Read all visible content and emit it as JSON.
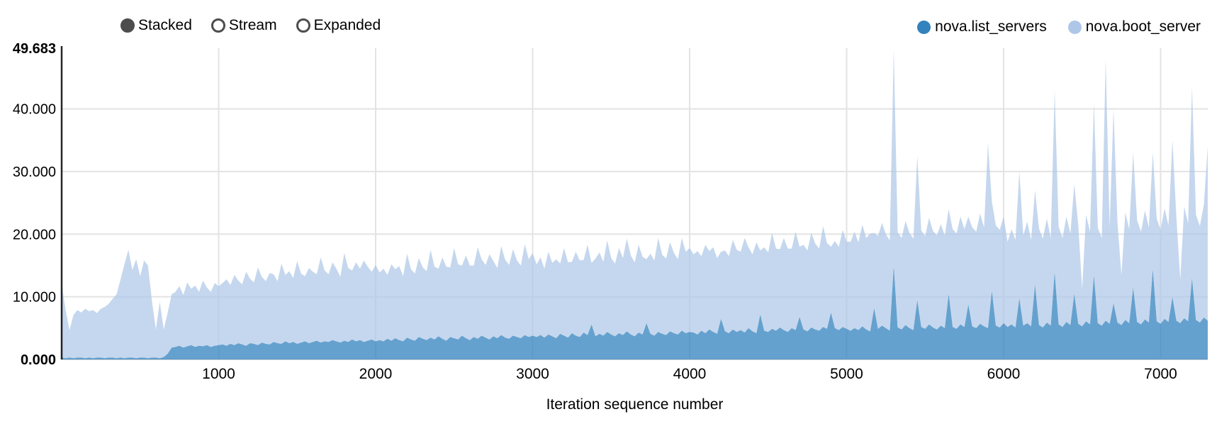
{
  "controls": {
    "items": [
      {
        "label": "Stacked",
        "selected": true
      },
      {
        "label": "Stream",
        "selected": false
      },
      {
        "label": "Expanded",
        "selected": false
      }
    ],
    "radio_color": "#4d4d4d"
  },
  "legend": {
    "position": "top-right",
    "items": [
      {
        "label": "nova.list_servers",
        "color": "#3182bd"
      },
      {
        "label": "nova.boot_server",
        "color": "#aec7e8"
      }
    ]
  },
  "chart_data": {
    "type": "area",
    "stacked": true,
    "title": "",
    "xlabel": "Iteration sequence number",
    "ylabel": "",
    "xlim": [
      0,
      7300
    ],
    "ylim": [
      0,
      49.683
    ],
    "grid": true,
    "grid_color": "#e3e3e3",
    "axis_line_color": "#000000",
    "x_start": 0,
    "x_step": 25,
    "x_ticks": [
      {
        "value": 1000,
        "label": "1000"
      },
      {
        "value": 2000,
        "label": "2000"
      },
      {
        "value": 3000,
        "label": "3000"
      },
      {
        "value": 4000,
        "label": "4000"
      },
      {
        "value": 5000,
        "label": "5000"
      },
      {
        "value": 6000,
        "label": "6000"
      },
      {
        "value": 7000,
        "label": "7000"
      }
    ],
    "y_ticks": [
      {
        "value": 0,
        "label": "0.000",
        "bold": true
      },
      {
        "value": 10,
        "label": "10.000",
        "bold": false
      },
      {
        "value": 20,
        "label": "20.000",
        "bold": false
      },
      {
        "value": 30,
        "label": "30.000",
        "bold": false
      },
      {
        "value": 40,
        "label": "40.000",
        "bold": false
      },
      {
        "value": 49.683,
        "label": "49.683",
        "bold": true
      }
    ],
    "series": [
      {
        "name": "nova.list_servers",
        "color": "#3182bd",
        "fill_opacity": 0.75,
        "values": [
          0.3,
          0.2,
          0.3,
          0.2,
          0.3,
          0.3,
          0.2,
          0.3,
          0.2,
          0.3,
          0.3,
          0.2,
          0.3,
          0.3,
          0.2,
          0.3,
          0.2,
          0.3,
          0.3,
          0.2,
          0.3,
          0.3,
          0.2,
          0.3,
          0.3,
          0.2,
          0.4,
          0.9,
          1.9,
          2.0,
          2.2,
          1.9,
          2.1,
          2.3,
          2.0,
          2.2,
          2.1,
          2.3,
          2.0,
          2.2,
          2.3,
          2.4,
          2.2,
          2.5,
          2.3,
          2.6,
          2.4,
          2.2,
          2.6,
          2.5,
          2.3,
          2.7,
          2.5,
          2.4,
          2.8,
          2.6,
          2.5,
          2.9,
          2.6,
          2.8,
          2.5,
          2.7,
          2.9,
          2.6,
          2.8,
          3.0,
          2.7,
          2.9,
          2.8,
          3.1,
          2.9,
          2.7,
          3.0,
          2.8,
          3.2,
          2.9,
          3.1,
          2.8,
          3.0,
          3.2,
          2.9,
          3.1,
          2.9,
          3.3,
          3.0,
          3.4,
          3.1,
          2.9,
          3.5,
          3.2,
          3.0,
          3.6,
          3.3,
          3.1,
          3.5,
          3.2,
          3.7,
          3.3,
          3.0,
          3.6,
          3.4,
          3.2,
          3.8,
          3.4,
          3.1,
          3.6,
          3.3,
          3.8,
          3.5,
          3.2,
          3.7,
          3.4,
          3.9,
          3.5,
          3.3,
          3.8,
          3.6,
          3.4,
          3.9,
          3.6,
          3.8,
          3.6,
          3.9,
          3.5,
          4.0,
          3.7,
          3.4,
          4.1,
          3.8,
          3.5,
          4.2,
          3.8,
          3.6,
          4.3,
          3.9,
          5.6,
          3.7,
          4.1,
          3.8,
          4.4,
          4.0,
          3.7,
          4.2,
          3.9,
          4.5,
          4.0,
          3.7,
          4.3,
          4.0,
          5.8,
          4.1,
          3.8,
          4.4,
          4.1,
          3.9,
          4.5,
          4.2,
          4.0,
          4.6,
          4.2,
          4.4,
          4.3,
          4.0,
          4.6,
          4.2,
          4.8,
          4.4,
          4.1,
          6.5,
          4.5,
          4.2,
          4.8,
          4.4,
          4.7,
          4.3,
          5.0,
          4.5,
          4.2,
          7.2,
          4.6,
          4.4,
          4.9,
          4.6,
          5.1,
          4.7,
          4.4,
          5.0,
          4.7,
          6.8,
          4.8,
          4.5,
          5.1,
          4.8,
          4.6,
          5.2,
          4.9,
          7.5,
          5.0,
          4.7,
          5.2,
          4.9,
          4.6,
          5.0,
          4.7,
          5.3,
          4.8,
          4.5,
          8.2,
          4.9,
          5.4,
          5.0,
          4.6,
          15.0,
          5.1,
          4.8,
          5.5,
          5.0,
          4.7,
          9.5,
          5.2,
          4.9,
          5.6,
          5.1,
          4.8,
          5.4,
          5.0,
          10.5,
          5.2,
          4.9,
          5.6,
          5.2,
          8.8,
          5.3,
          5.0,
          5.7,
          5.3,
          5.0,
          11.0,
          5.4,
          5.1,
          5.8,
          5.2,
          5.6,
          5.1,
          9.8,
          5.4,
          5.8,
          5.3,
          12.0,
          5.5,
          5.1,
          5.9,
          5.4,
          14.0,
          5.6,
          5.2,
          6.0,
          5.5,
          10.5,
          5.7,
          5.3,
          6.1,
          5.6,
          13.5,
          5.8,
          5.4,
          6.2,
          5.7,
          9.0,
          5.9,
          5.5,
          6.3,
          5.8,
          11.5,
          6.0,
          5.6,
          6.4,
          5.9,
          14.5,
          6.1,
          5.7,
          6.5,
          6.0,
          10.0,
          6.2,
          5.8,
          6.6,
          6.1,
          13.0,
          6.3,
          5.9,
          6.7,
          6.2
        ]
      },
      {
        "name": "nova.boot_server",
        "color": "#aec7e8",
        "fill_opacity": 0.72,
        "values": [
          11.7,
          7.8,
          4.4,
          6.9,
          7.6,
          7.2,
          7.9,
          7.4,
          7.7,
          7.1,
          7.8,
          8.2,
          8.6,
          9.4,
          10.2,
          12.5,
          15.0,
          17.2,
          14.0,
          15.8,
          13.0,
          15.5,
          14.8,
          9.0,
          4.5,
          9.0,
          4.4,
          6.5,
          8.5,
          8.8,
          9.5,
          8.4,
          10.2,
          9.0,
          9.8,
          8.6,
          10.5,
          9.2,
          8.8,
          10.0,
          9.4,
          9.8,
          10.6,
          9.4,
          11.2,
          10.0,
          9.6,
          11.8,
          10.3,
          9.8,
          12.4,
          10.5,
          10.0,
          11.4,
          10.8,
          9.9,
          12.8,
          10.6,
          11.5,
          10.2,
          13.2,
          11.0,
          10.4,
          12.0,
          11.2,
          10.6,
          13.6,
          11.3,
          10.8,
          12.4,
          11.6,
          10.5,
          14.0,
          11.8,
          11.0,
          12.6,
          11.4,
          13.0,
          11.8,
          10.8,
          12.2,
          10.8,
          11.6,
          10.2,
          12.2,
          11.0,
          11.8,
          10.4,
          13.4,
          11.2,
          10.7,
          12.6,
          11.4,
          11.0,
          14.0,
          11.6,
          10.8,
          13.0,
          11.8,
          11.1,
          14.4,
          12.0,
          11.2,
          13.2,
          11.9,
          11.4,
          14.6,
          12.2,
          11.6,
          13.6,
          12.0,
          11.2,
          14.2,
          12.4,
          11.8,
          13.8,
          12.2,
          11.6,
          14.5,
          12.4,
          13.2,
          11.6,
          12.4,
          11.0,
          13.2,
          11.7,
          12.6,
          11.2,
          14.0,
          12.0,
          11.4,
          13.4,
          12.2,
          11.6,
          14.4,
          9.8,
          12.4,
          13.0,
          11.8,
          14.6,
          12.2,
          11.6,
          13.6,
          12.3,
          14.8,
          12.6,
          11.8,
          14.0,
          12.4,
          10.2,
          12.8,
          12.0,
          15.0,
          12.6,
          12.2,
          14.2,
          12.8,
          12.0,
          14.8,
          13.0,
          13.4,
          12.5,
          13.3,
          11.9,
          14.1,
          12.5,
          13.5,
          12.1,
          10.7,
          12.9,
          12.3,
          14.3,
          13.1,
          12.5,
          15.1,
          12.9,
          12.3,
          14.5,
          10.2,
          13.3,
          12.7,
          15.3,
          13.1,
          12.5,
          14.7,
          13.3,
          12.7,
          15.7,
          11.2,
          13.5,
          12.9,
          15.1,
          13.7,
          13.1,
          16.1,
          13.7,
          10.5,
          13.9,
          13.3,
          15.5,
          13.9,
          14.2,
          15.4,
          14.0,
          16.2,
          14.6,
          15.6,
          12.0,
          14.8,
          16.4,
          15.0,
          14.4,
          34.5,
          15.2,
          14.6,
          16.6,
          15.2,
          14.6,
          23.0,
          15.4,
          14.8,
          17.0,
          15.4,
          15.0,
          16.2,
          14.8,
          13.5,
          15.6,
          15.2,
          17.2,
          15.6,
          14.0,
          15.8,
          15.4,
          17.6,
          15.8,
          29.5,
          14.2,
          16.0,
          15.6,
          17.0,
          13.6,
          15.2,
          14.0,
          20.2,
          14.4,
          16.2,
          13.8,
          15.0,
          15.4,
          14.2,
          16.6,
          14.0,
          29.0,
          15.6,
          14.2,
          16.8,
          14.6,
          17.5,
          15.8,
          6.0,
          17.0,
          14.8,
          27.5,
          15.2,
          14.0,
          41.8,
          15.4,
          31.0,
          16.0,
          8.0,
          17.2,
          15.0,
          21.5,
          16.2,
          14.8,
          17.4,
          15.2,
          18.5,
          16.4,
          15.0,
          17.6,
          15.4,
          25.0,
          16.6,
          7.0,
          17.8,
          15.6,
          30.5,
          16.8,
          15.4,
          18.0,
          27.8
        ]
      }
    ]
  }
}
